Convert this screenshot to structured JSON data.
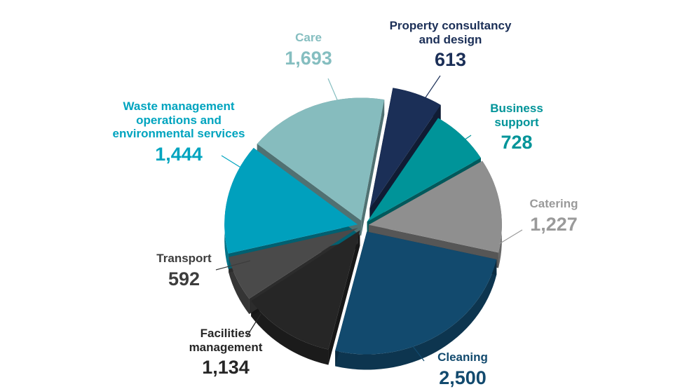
{
  "chart_data": {
    "type": "pie",
    "title": "",
    "style": "3d-exploded",
    "slices": [
      {
        "label": "Property consultancy and design",
        "value": 613,
        "color": "#1b2f57",
        "label_color": "#1b2f57"
      },
      {
        "label": "Business support",
        "value": 728,
        "color": "#009499",
        "label_color": "#009499"
      },
      {
        "label": "Catering",
        "value": 1227,
        "color": "#8f8f8f",
        "label_color": "#9a9a9a"
      },
      {
        "label": "Cleaning",
        "value": 2500,
        "color": "#124a6e",
        "label_color": "#124a6e"
      },
      {
        "label": "Facilities management",
        "value": 1134,
        "color": "#262626",
        "label_color": "#262626"
      },
      {
        "label": "Transport",
        "value": 592,
        "color": "#4a4a4a",
        "label_color": "#3d3d3d"
      },
      {
        "label": "Waste management operations and environmental services",
        "value": 1444,
        "color": "#00a0bd",
        "label_color": "#00a4bf"
      },
      {
        "label": "Care",
        "value": 1693,
        "color": "#86bcbe",
        "label_color": "#85bec0"
      }
    ]
  },
  "labels": {
    "property": {
      "name": "Property consultancy and design",
      "value": "613"
    },
    "business": {
      "name": "Business support",
      "value": "728"
    },
    "catering": {
      "name": "Catering",
      "value": "1,227"
    },
    "cleaning": {
      "name": "Cleaning",
      "value": "2,500"
    },
    "facilities": {
      "name": "Facilities management",
      "value": "1,134"
    },
    "transport": {
      "name": "Transport",
      "value": "592"
    },
    "waste": {
      "name": "Waste management operations and environmental services",
      "value": "1,444"
    },
    "care": {
      "name": "Care",
      "value": "1,693"
    }
  }
}
